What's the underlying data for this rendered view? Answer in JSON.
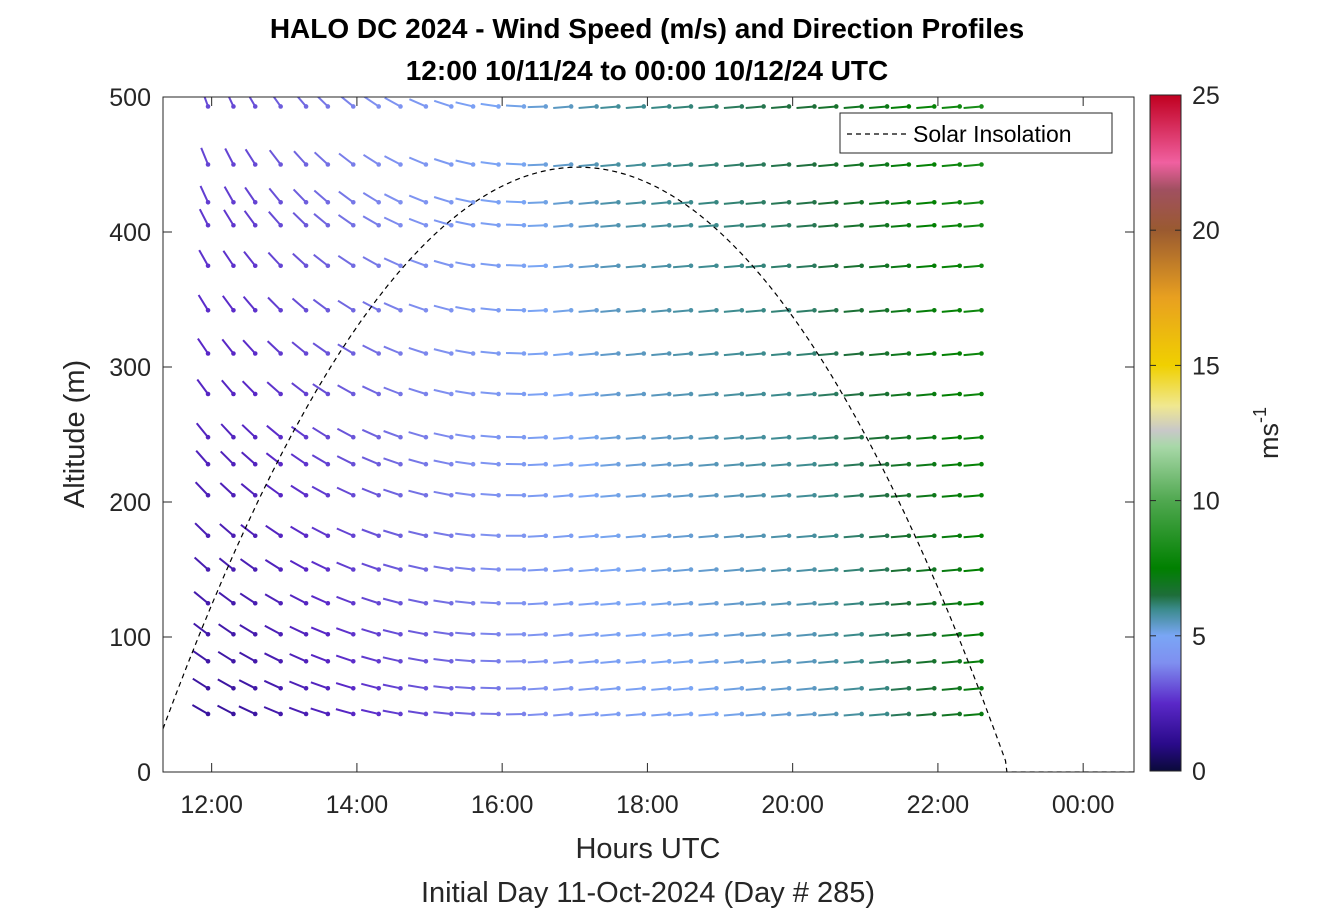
{
  "chart_data": {
    "type": "wind-barb-profile",
    "title_line1": "HALO DC 2024 - Wind Speed (m/s) and Direction Profiles",
    "title_line2": "12:00 10/11/24 to 00:00 10/12/24  UTC",
    "xlabel": "Hours UTC",
    "subtitle": "Initial Day 11-Oct-2024 (Day # 285)",
    "ylabel": "Altitude (m)",
    "colorbar_label": "ms",
    "colorbar_label_exp": "-1",
    "xlim_hours": [
      11.33,
      24.7
    ],
    "ylim": [
      0,
      500
    ],
    "x_ticks": [
      {
        "hour": 12,
        "label": "12:00"
      },
      {
        "hour": 14,
        "label": "14:00"
      },
      {
        "hour": 16,
        "label": "16:00"
      },
      {
        "hour": 18,
        "label": "18:00"
      },
      {
        "hour": 20,
        "label": "20:00"
      },
      {
        "hour": 22,
        "label": "22:00"
      },
      {
        "hour": 24,
        "label": "00:00"
      }
    ],
    "y_ticks": [
      {
        "value": 0,
        "label": "0"
      },
      {
        "value": 100,
        "label": "100"
      },
      {
        "value": 200,
        "label": "200"
      },
      {
        "value": 300,
        "label": "300"
      },
      {
        "value": 400,
        "label": "400"
      },
      {
        "value": 500,
        "label": "500"
      }
    ],
    "colorbar_range": [
      0,
      25
    ],
    "colorbar_ticks": [
      {
        "value": 0,
        "label": "0"
      },
      {
        "value": 5,
        "label": "5"
      },
      {
        "value": 10,
        "label": "10"
      },
      {
        "value": 15,
        "label": "15"
      },
      {
        "value": 20,
        "label": "20"
      },
      {
        "value": 25,
        "label": "25"
      }
    ],
    "colorbar_stops": [
      {
        "v": 0,
        "c": "#0a0a3a"
      },
      {
        "v": 1.0,
        "c": "#2a0a8a"
      },
      {
        "v": 2.5,
        "c": "#5a28c8"
      },
      {
        "v": 4.0,
        "c": "#7f8ff0"
      },
      {
        "v": 5.0,
        "c": "#7aa6f5"
      },
      {
        "v": 6.0,
        "c": "#3a8a8a"
      },
      {
        "v": 6.5,
        "c": "#1e6e3a"
      },
      {
        "v": 7.5,
        "c": "#008000"
      },
      {
        "v": 10.0,
        "c": "#50a850"
      },
      {
        "v": 12.0,
        "c": "#a8d8a8"
      },
      {
        "v": 12.6,
        "c": "#c8c8c8"
      },
      {
        "v": 13.5,
        "c": "#f0e890"
      },
      {
        "v": 15.0,
        "c": "#f0d000"
      },
      {
        "v": 17.5,
        "c": "#e8a020"
      },
      {
        "v": 20.0,
        "c": "#9a5a30"
      },
      {
        "v": 21.5,
        "c": "#a05060"
      },
      {
        "v": 22.5,
        "c": "#f060a0"
      },
      {
        "v": 25.0,
        "c": "#c00020"
      }
    ],
    "legend": {
      "label": "Solar Insolation",
      "placement": "top-right"
    },
    "solar_insolation": {
      "peak_hour": 17.05,
      "peak_altitude": 448,
      "zero_hour": 22.95,
      "curve_start": [
        11.33,
        32
      ]
    },
    "barb_times_hours": [
      11.95,
      12.3,
      12.6,
      12.95,
      13.3,
      13.6,
      13.95,
      14.3,
      14.6,
      14.95,
      15.3,
      15.6,
      15.95,
      16.3,
      16.6,
      16.95,
      17.3,
      17.6,
      17.95,
      18.3,
      18.6,
      18.95,
      19.3,
      19.6,
      19.95,
      20.3,
      20.6,
      20.95,
      21.3,
      21.6,
      21.95,
      22.3,
      22.6
    ],
    "barb_altitudes_m": [
      43,
      62,
      82,
      102,
      125,
      150,
      175,
      205,
      228,
      248,
      280,
      310,
      342,
      375,
      405,
      422,
      450,
      493
    ],
    "wind_speed_columns_ms": [
      1.5,
      1.5,
      1.6,
      1.8,
      2.0,
      2.2,
      2.4,
      2.6,
      2.8,
      3.0,
      3.2,
      3.4,
      3.6,
      3.8,
      4.0,
      4.2,
      4.4,
      4.6,
      4.7,
      4.8,
      4.9,
      5.0,
      5.1,
      5.2,
      5.3,
      5.4,
      5.6,
      5.8,
      6.0,
      6.3,
      6.6,
      6.9,
      7.2
    ],
    "wind_speed_aloft_boost_ms": 1.5,
    "wind_direction_deg": {
      "early_low": 300,
      "early_high": 340,
      "late_all": 265
    }
  }
}
